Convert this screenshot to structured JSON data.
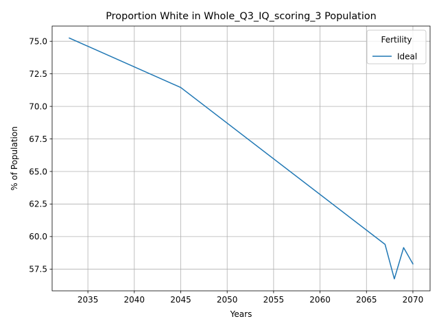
{
  "chart_data": {
    "type": "line",
    "title": "Proportion White in Whole_Q3_IQ_scoring_3 Population",
    "xlabel": "Years",
    "ylabel": "% of Population",
    "xlim": [
      2031.15,
      2071.85
    ],
    "ylim": [
      55.83,
      76.17
    ],
    "x_ticks": [
      2035,
      2040,
      2045,
      2050,
      2055,
      2060,
      2065,
      2070
    ],
    "y_ticks": [
      57.5,
      60.0,
      62.5,
      65.0,
      67.5,
      70.0,
      72.5,
      75.0
    ],
    "y_tick_labels": [
      "57.5",
      "60.0",
      "62.5",
      "65.0",
      "67.5",
      "70.0",
      "72.5",
      "75.0"
    ],
    "grid": true,
    "legend": {
      "title": "Fertility",
      "placement": "top-right"
    },
    "series": [
      {
        "name": "Ideal",
        "color": "#1f77b4",
        "x": [
          2033,
          2045,
          2067,
          2068,
          2069,
          2070
        ],
        "y": [
          75.25,
          71.45,
          59.4,
          56.75,
          59.15,
          57.9
        ]
      }
    ]
  }
}
